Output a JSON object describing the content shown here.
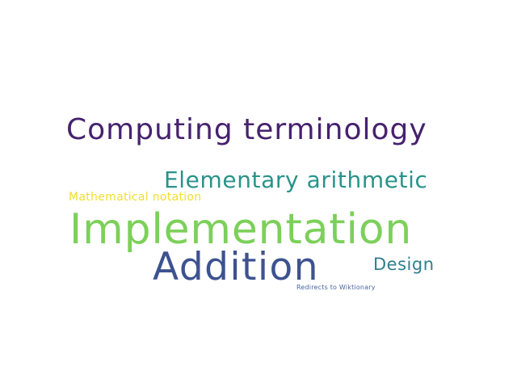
{
  "word_cloud": {
    "background": "#ffffff",
    "words": [
      {
        "text": "Computing terminology",
        "color": "#46226e"
      },
      {
        "text": "Elementary arithmetic",
        "color": "#29938a"
      },
      {
        "text": "Mathematical notation",
        "color": "#f0df2b"
      },
      {
        "text": "Implementation",
        "color": "#7cd05a"
      },
      {
        "text": "Addition",
        "color": "#3d5290"
      },
      {
        "text": "Design",
        "color": "#2e7f8d"
      },
      {
        "text": "Redirects to Wiktionary",
        "color": "#4a66a0"
      }
    ]
  }
}
